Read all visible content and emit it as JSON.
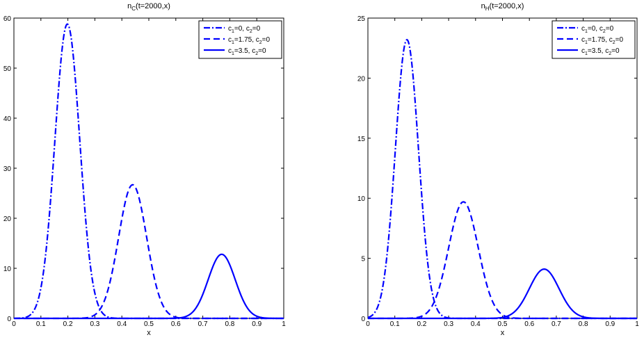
{
  "chart_data": [
    {
      "type": "line",
      "title": {
        "base": "n",
        "sub": "C",
        "rest": "(t=2000,x)"
      },
      "xlabel": "x",
      "ylabel": "",
      "xlim": [
        0,
        1
      ],
      "ylim": [
        0,
        60
      ],
      "xticks": [
        0,
        0.1,
        0.2,
        0.3,
        0.4,
        0.5,
        0.6,
        0.7,
        0.8,
        0.9,
        1
      ],
      "xtick_labels": [
        "0",
        "0.1",
        "0.2",
        "0.3",
        "0.4",
        "0.5",
        "0.6",
        "0.7",
        "0.8",
        "0.9",
        "1"
      ],
      "yticks": [
        0,
        10,
        20,
        30,
        40,
        50,
        60
      ],
      "ytick_labels": [
        "0",
        "10",
        "20",
        "30",
        "40",
        "50",
        "60"
      ],
      "grid": false,
      "legend_position": "top-right",
      "series": [
        {
          "legend": [
            [
              "c",
              "1",
              "=0, "
            ],
            [
              "c",
              "2",
              "=0"
            ]
          ],
          "style": "dashdot",
          "color": "#0000ff",
          "peak_x": 0.198,
          "peak_y": 58.8,
          "width": 0.046
        },
        {
          "legend": [
            [
              "c",
              "1",
              "=1.75, "
            ],
            [
              "c",
              "2",
              "=0"
            ]
          ],
          "style": "dashed",
          "color": "#0000ff",
          "peak_x": 0.44,
          "peak_y": 26.7,
          "width": 0.052
        },
        {
          "legend": [
            [
              "c",
              "1",
              "=3.5, "
            ],
            [
              "c",
              "2",
              "=0"
            ]
          ],
          "style": "solid",
          "color": "#0000ff",
          "peak_x": 0.77,
          "peak_y": 12.8,
          "width": 0.05
        }
      ]
    },
    {
      "type": "line",
      "title": {
        "base": "n",
        "sub": "H",
        "rest": "(t=2000,x)"
      },
      "xlabel": "x",
      "ylabel": "",
      "xlim": [
        0,
        1
      ],
      "ylim": [
        0,
        25
      ],
      "xticks": [
        0,
        0.1,
        0.2,
        0.3,
        0.4,
        0.5,
        0.6,
        0.7,
        0.8,
        0.9,
        1
      ],
      "xtick_labels": [
        "0",
        "0.1",
        "0.2",
        "0.3",
        "0.4",
        "0.5",
        "0.6",
        "0.7",
        "0.8",
        "0.9",
        "1"
      ],
      "yticks": [
        0,
        5,
        10,
        15,
        20,
        25
      ],
      "ytick_labels": [
        "0",
        "5",
        "10",
        "15",
        "20",
        "25"
      ],
      "grid": false,
      "legend_position": "top-right",
      "series": [
        {
          "legend": [
            [
              "c",
              "1",
              "=0, "
            ],
            [
              "c",
              "2",
              "=0"
            ]
          ],
          "style": "dashdot",
          "color": "#0000ff",
          "peak_x": 0.145,
          "peak_y": 23.2,
          "width": 0.043
        },
        {
          "legend": [
            [
              "c",
              "1",
              "=1.75, "
            ],
            [
              "c",
              "2",
              "=0"
            ]
          ],
          "style": "dashed",
          "color": "#0000ff",
          "peak_x": 0.355,
          "peak_y": 9.7,
          "width": 0.055
        },
        {
          "legend": [
            [
              "c",
              "1",
              "=3.5, "
            ],
            [
              "c",
              "2",
              "=0"
            ]
          ],
          "style": "solid",
          "color": "#0000ff",
          "peak_x": 0.655,
          "peak_y": 4.1,
          "width": 0.055
        }
      ]
    }
  ]
}
